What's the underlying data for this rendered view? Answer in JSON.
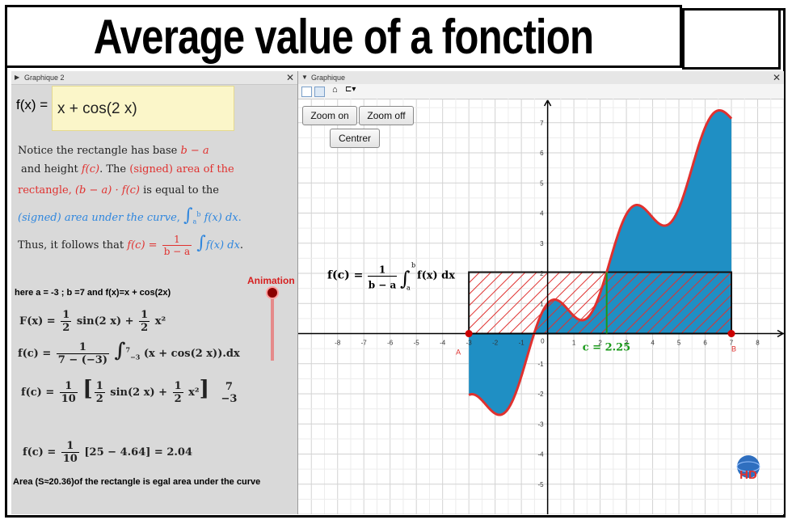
{
  "title": "Average value of a fonction",
  "left_panel": {
    "header": "Graphique 2",
    "fx_label": "f(x) =",
    "fx_value": "x + cos(2 x)",
    "para1_line1_a": "Notice the rectangle has base ",
    "para1_line1_b": "b − a",
    "para1_line2_a": "and height ",
    "para1_line2_b": "f(c)",
    "para1_line2_c": ". The ",
    "para1_line2_d": "(signed) area of the",
    "para1_line3_a": "rectangle, ",
    "para1_line3_b": "(b − a) · f(c)",
    "para1_line3_c": " is equal to the",
    "para1_line4_a": "(signed) area under the curve",
    "para1_line4_b": ",",
    "para1_line4_c": "f(x) dx",
    "para1_line4_lower": "a",
    "para1_line4_upper": "b",
    "para2_a": "Thus, it follows that ",
    "para2_b": "f(c) =",
    "para2_num": "1",
    "para2_den": "b − a",
    "para2_c": "f(x) dx",
    "here_line": "here  a = -3 ;  b =7 and f(x)=x + cos(2x)",
    "F_lhs": "F(x) =",
    "F_half1": "1",
    "F_two1": "2",
    "F_mid": "sin(2 x) +",
    "F_half2": "1",
    "F_two2": "2",
    "F_end": "x²",
    "fc1_lhs": "f(c) =",
    "fc1_num": "1",
    "fc1_den": "7 − (−3)",
    "fc1_upper": "7",
    "fc1_lower": "−3",
    "fc1_body": "(x + cos(2 x)).dx",
    "fc2_lhs": "f(c) =",
    "fc2_num": "1",
    "fc2_den": "10",
    "fc2_body": "sin(2 x) +",
    "fc2_end": "x²",
    "fc2_upper": "7",
    "fc2_lower": "−3",
    "fc3_lhs": "f(c) =",
    "fc3_num": "1",
    "fc3_den": "10",
    "fc3_body": "[25 − 4.64] = 2.04",
    "area_line": "Area (S≈20.36)of the rectangle is egal area under the curve",
    "animation_label": "Animation"
  },
  "right_panel": {
    "header": "Graphique",
    "zoom_on": "Zoom on",
    "zoom_off": "Zoom off",
    "centrer": "Centrer",
    "formula_lhs": "f(c) =",
    "formula_num": "1",
    "formula_den": "b − a",
    "formula_lower": "a",
    "formula_upper": "b",
    "formula_body": "f(x) dx",
    "c_label": "c = 2.25",
    "point_a": "A",
    "point_b": "B",
    "logo": "HD"
  },
  "chart_data": {
    "type": "area",
    "function": "x + cos(2x)",
    "a": -3,
    "b": 7,
    "c": 2.25,
    "f_c": 2.04,
    "xlim": [
      -9.5,
      9
    ],
    "ylim": [
      -6,
      7.8
    ],
    "x_ticks": [
      -8,
      -7,
      -6,
      -5,
      -4,
      -3,
      -2,
      -1,
      1,
      2,
      3,
      4,
      5,
      6,
      7,
      8
    ],
    "y_ticks": [
      -5,
      -4,
      -3,
      -2,
      -1,
      1,
      2,
      3,
      4,
      5,
      6,
      7
    ],
    "grid": true,
    "colors": {
      "area": "#1f8fc4",
      "curve": "#e0312f",
      "rect_hatch": "#e0312f",
      "c_line": "#1a9a1a",
      "points": "#cc0000"
    }
  }
}
